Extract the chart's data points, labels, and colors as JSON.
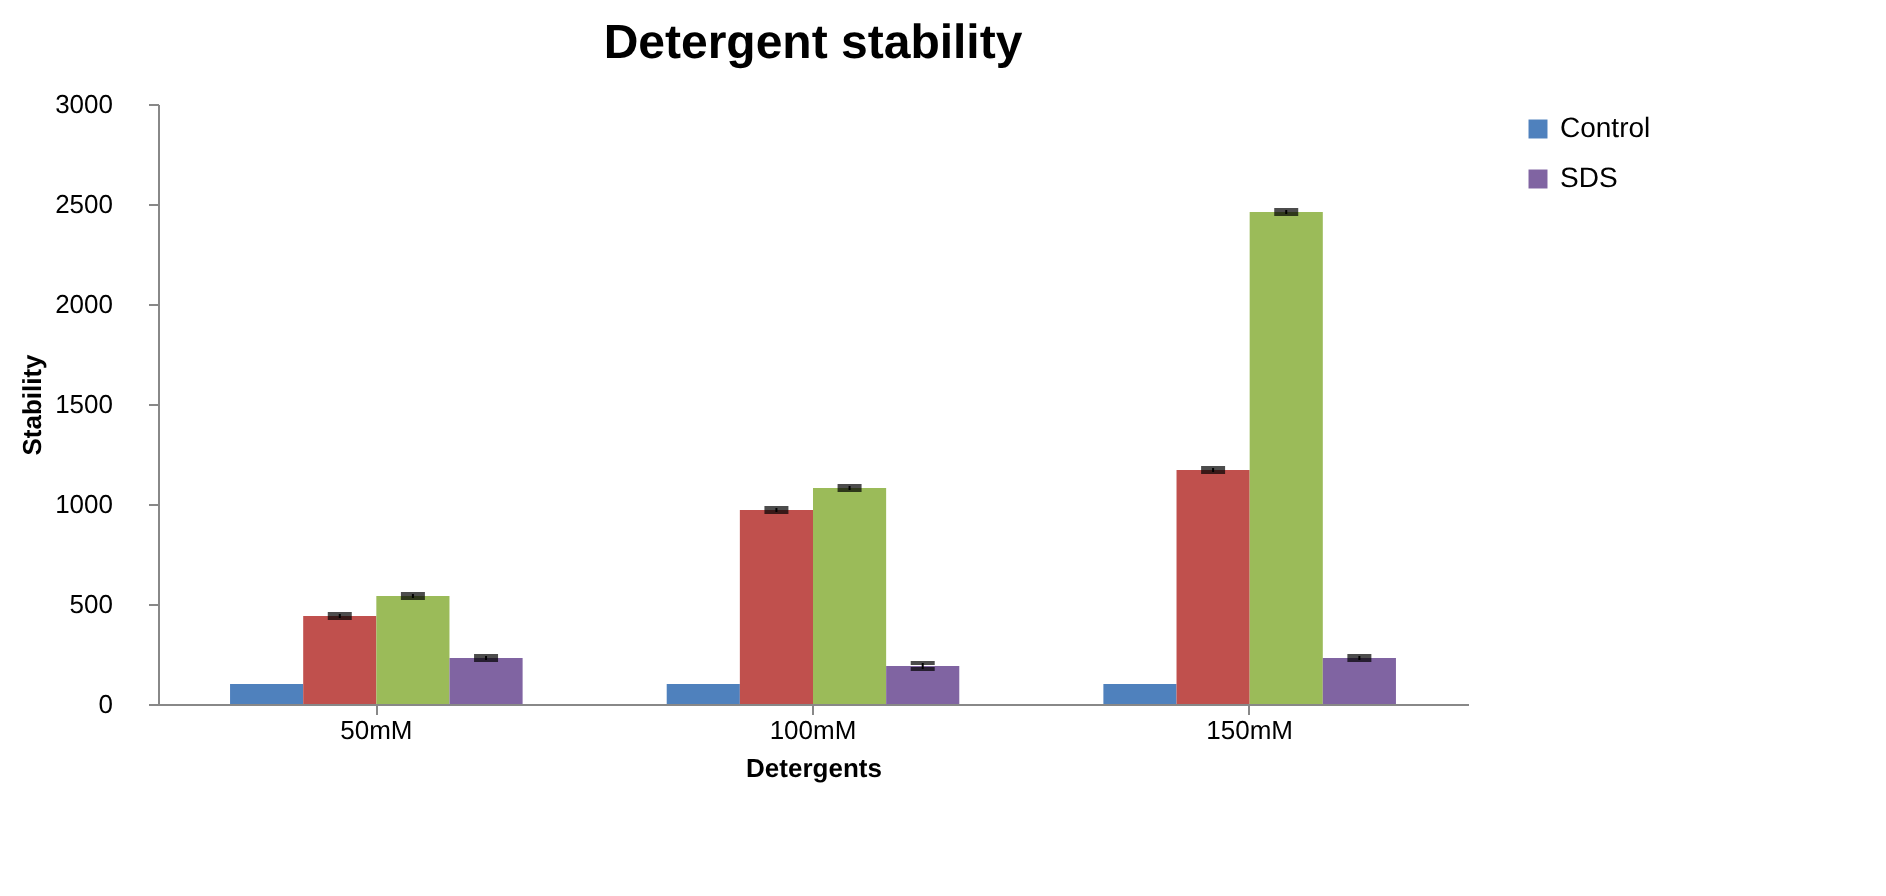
{
  "chart_data": {
    "type": "bar",
    "title": "Detergent stability",
    "xlabel": "Detergents",
    "ylabel": "Stability",
    "categories": [
      "50mM",
      "100mM",
      "150mM"
    ],
    "series": [
      {
        "name": "Control",
        "color": "#4f81bd",
        "values": [
          100,
          100,
          100
        ]
      },
      {
        "color": "#c0504d",
        "values": [
          440,
          970,
          1170
        ],
        "errors": [
          10,
          10,
          10
        ]
      },
      {
        "color": "#9bbb59",
        "values": [
          540,
          1080,
          2460
        ],
        "errors": [
          10,
          10,
          10
        ]
      },
      {
        "name": "SDS",
        "color": "#8064a2",
        "values": [
          230,
          190,
          230
        ],
        "errors": [
          10,
          15,
          10
        ]
      }
    ],
    "ylim": [
      0,
      3000
    ],
    "yticks": [
      0,
      500,
      1000,
      1500,
      2000,
      2500,
      3000
    ],
    "grid": false,
    "legend": "right"
  }
}
